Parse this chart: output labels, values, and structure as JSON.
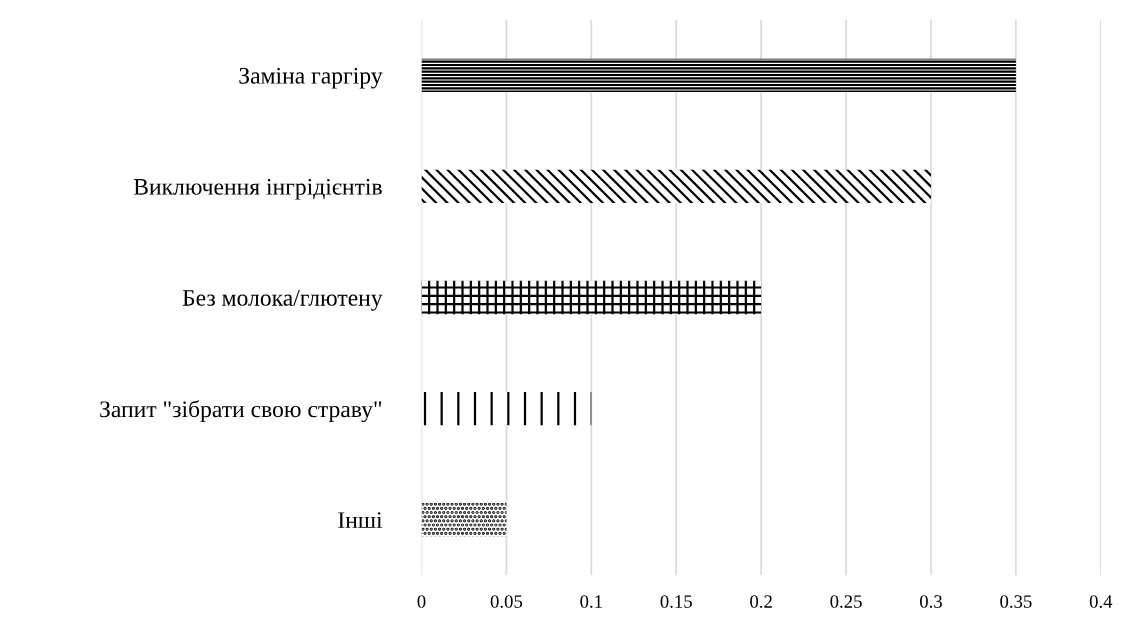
{
  "chart_data": {
    "type": "bar",
    "orientation": "horizontal",
    "categories": [
      "Заміна гаргіру",
      "Виключення інгрідієнтів",
      "Без молока/глютену",
      "Запит \"зібрати свою страву\"",
      "Інші"
    ],
    "values": [
      0.35,
      0.3,
      0.2,
      0.1,
      0.05
    ],
    "color": "#000000",
    "xlim": [
      0,
      0.4
    ],
    "xticks": [
      0,
      0.05,
      0.1,
      0.15,
      0.2,
      0.25,
      0.3,
      0.35,
      0.4
    ],
    "grid": "x"
  }
}
